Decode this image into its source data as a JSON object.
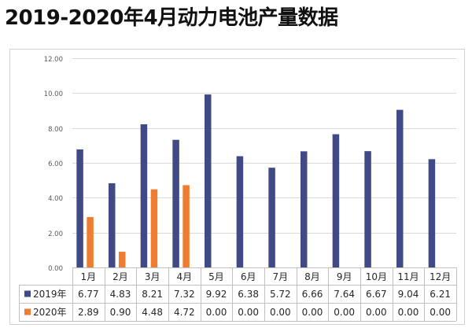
{
  "chart_data": {
    "type": "bar",
    "title": "2019-2020年4月动力电池产量数据",
    "categories": [
      "1月",
      "2月",
      "3月",
      "4月",
      "5月",
      "6月",
      "7月",
      "8月",
      "9月",
      "10月",
      "11月",
      "12月"
    ],
    "series": [
      {
        "name": "2019年",
        "color": "#3f4a86",
        "values": [
          6.77,
          4.83,
          8.21,
          7.32,
          9.92,
          6.38,
          5.72,
          6.66,
          7.64,
          6.67,
          9.04,
          6.21
        ],
        "labels": [
          "6.77",
          "4.83",
          "8.21",
          "7.32",
          "9.92",
          "6.38",
          "5.72",
          "6.66",
          "7.64",
          "6.67",
          "9.04",
          "6.21"
        ]
      },
      {
        "name": "2020年",
        "color": "#ee7d31",
        "values": [
          2.89,
          0.9,
          4.48,
          4.72,
          0.0,
          0.0,
          0.0,
          0.0,
          0.0,
          0.0,
          0.0,
          0.0
        ],
        "labels": [
          "2.89",
          "0.90",
          "4.48",
          "4.72",
          "0.00",
          "0.00",
          "0.00",
          "0.00",
          "0.00",
          "0.00",
          "0.00",
          "0.00"
        ]
      }
    ],
    "ylim": [
      0,
      12
    ],
    "yticks": [
      "0.00",
      "2.00",
      "4.00",
      "6.00",
      "8.00",
      "10.00",
      "12.00"
    ],
    "grid": true,
    "legend": "data-table"
  }
}
